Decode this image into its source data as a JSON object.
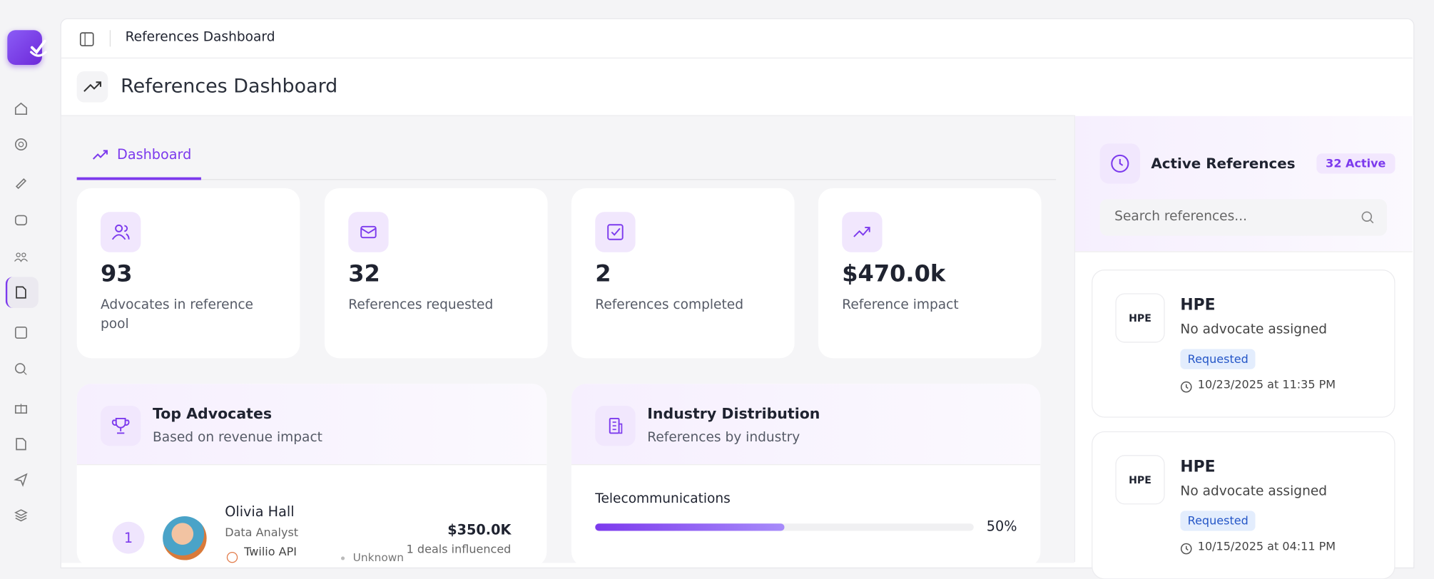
{
  "topbar": {
    "breadcrumb": "References Dashboard"
  },
  "header": {
    "title": "References Dashboard"
  },
  "tabs": [
    "Dashboard"
  ],
  "stats": [
    {
      "value": "93",
      "label": "Advocates in reference pool"
    },
    {
      "value": "32",
      "label": "References requested"
    },
    {
      "value": "2",
      "label": "References completed"
    },
    {
      "value": "$470.0k",
      "label": "Reference impact"
    }
  ],
  "top_advocates": {
    "title": "Top Advocates",
    "subtitle": "Based on revenue impact",
    "rows": [
      {
        "rank": "1",
        "name": "Olivia Hall",
        "role": "Data Analyst",
        "company": "Twilio API",
        "industry": "Unknown",
        "amount": "$350.0K",
        "deals": "1 deals influenced"
      }
    ]
  },
  "industry": {
    "title": "Industry Distribution",
    "subtitle": "References by industry",
    "items": [
      {
        "name": "Telecommunications",
        "value": 50,
        "label": "50%"
      }
    ]
  },
  "active_references": {
    "title": "Active References",
    "badge": "32 Active",
    "search_placeholder": "Search references...",
    "cards": [
      {
        "logo": "HPE",
        "company": "HPE",
        "advocate": "No advocate assigned",
        "status": "Requested",
        "date": "10/23/2025 at 11:35 PM"
      },
      {
        "logo": "HPE",
        "company": "HPE",
        "advocate": "No advocate assigned",
        "status": "Requested",
        "date": "10/15/2025 at 04:11 PM"
      }
    ]
  }
}
